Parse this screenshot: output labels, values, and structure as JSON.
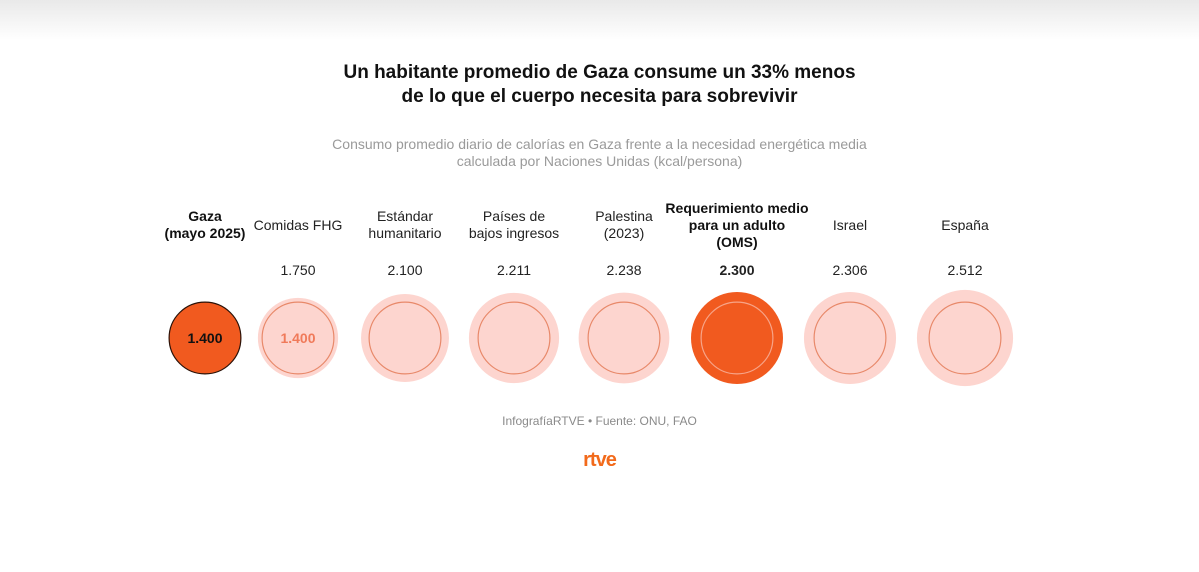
{
  "chart_data": {
    "type": "bubble",
    "title_line1": "Un habitante promedio de Gaza consume un 33% menos",
    "title_line2": "de lo que el cuerpo necesita para sobrevivir",
    "subtitle_line1": "Consumo promedio diario de calorías en Gaza frente a la necesidad energética media",
    "subtitle_line2": "calculada por Naciones Unidas (kcal/persona)",
    "unit": "kcal/persona",
    "reference_value": 1400,
    "reference_label": "1.400",
    "items": [
      {
        "label_lines": [
          "Gaza",
          "(mayo 2025)"
        ],
        "value": 1400,
        "value_label": "1.400",
        "highlight": "gaza"
      },
      {
        "label_lines": [
          "Comidas FHG"
        ],
        "value": 1750,
        "value_label": "1.750",
        "highlight": ""
      },
      {
        "label_lines": [
          "Estándar",
          "humanitario"
        ],
        "value": 2100,
        "value_label": "2.100",
        "highlight": ""
      },
      {
        "label_lines": [
          "Países de",
          "bajos ingresos"
        ],
        "value": 2211,
        "value_label": "2.211",
        "highlight": ""
      },
      {
        "label_lines": [
          "Palestina",
          "(2023)"
        ],
        "value": 2238,
        "value_label": "2.238",
        "highlight": ""
      },
      {
        "label_lines": [
          "Requerimiento medio",
          "para un adulto",
          "(OMS)"
        ],
        "value": 2300,
        "value_label": "2.300",
        "highlight": "oms"
      },
      {
        "label_lines": [
          "Israel"
        ],
        "value": 2306,
        "value_label": "2.306",
        "highlight": ""
      },
      {
        "label_lines": [
          "España"
        ],
        "value": 2512,
        "value_label": "2.512",
        "highlight": ""
      }
    ]
  },
  "source": "InfografíaRTVE • Fuente: ONU, FAO",
  "logo_text": "rtve",
  "colors": {
    "accent": "#f15a1f",
    "light_fill": "#fdd5cf",
    "ring": "#e8896a",
    "ref_text": "#f07a5a",
    "dark_stroke": "#2b1208"
  }
}
